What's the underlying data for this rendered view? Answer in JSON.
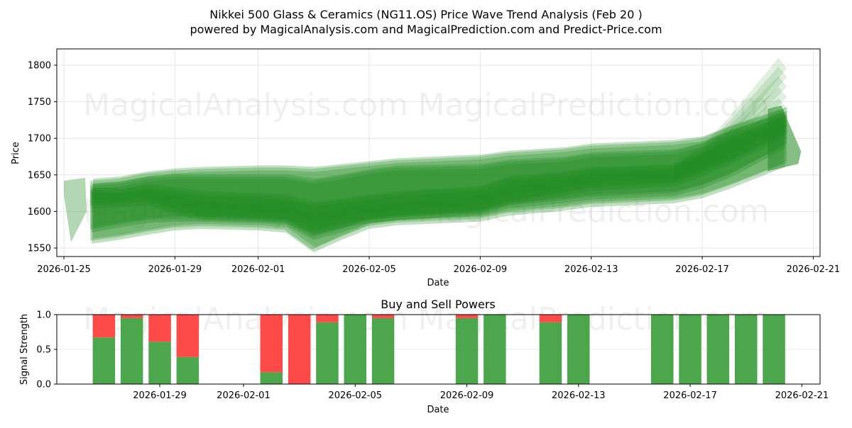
{
  "header": {
    "title_line1": "Nikkei 500 Glass & Ceramics (NG11.OS) Price Wave Trend Analysis (Feb 20 )",
    "title_line2": "powered by MagicalAnalysis.com and MagicalPrediction.com and Predict-Price.com"
  },
  "watermarks": [
    "MagicalAnalysis.com",
    "MagicalPrediction.com"
  ],
  "colors": {
    "wave": "#228B22",
    "buy": "#4CA64C",
    "sell": "#FF4A4A",
    "grid": "#e0e0e0"
  },
  "chart_data": [
    {
      "type": "area",
      "title": "Price Wave Trend",
      "xlabel": "Date",
      "ylabel": "Price",
      "ylim": [
        1537,
        1822
      ],
      "yticks": [
        1550,
        1600,
        1650,
        1700,
        1750,
        1800
      ],
      "xticks": [
        "2026-01-25",
        "2026-01-29",
        "2026-02-01",
        "2026-02-05",
        "2026-02-09",
        "2026-02-13",
        "2026-02-17",
        "2026-02-21"
      ],
      "grid": true,
      "center_line": {
        "x": [
          "2026-01-26",
          "2026-01-27",
          "2026-01-28",
          "2026-01-29",
          "2026-01-30",
          "2026-02-01",
          "2026-02-02",
          "2026-02-03",
          "2026-02-04",
          "2026-02-05",
          "2026-02-06",
          "2026-02-09",
          "2026-02-10",
          "2026-02-12",
          "2026-02-13",
          "2026-02-16",
          "2026-02-17",
          "2026-02-18",
          "2026-02-20"
        ],
        "y": [
          1622,
          1620,
          1625,
          1615,
          1608,
          1605,
          1603,
          1590,
          1598,
          1603,
          1607,
          1615,
          1628,
          1638,
          1645,
          1650,
          1665,
          1685,
          1720
        ]
      },
      "bands": [
        {
          "name": "outer-upper",
          "upper": [
            1642,
            1645,
            1652,
            1656,
            1658,
            1660,
            1660,
            1658,
            1662,
            1666,
            1670,
            1675,
            1680,
            1685,
            1690,
            1695,
            1700,
            1715,
            1740
          ],
          "lower": [
            1560,
            1565,
            1572,
            1578,
            1580,
            1578,
            1575,
            1548,
            1565,
            1580,
            1585,
            1590,
            1598,
            1605,
            1610,
            1615,
            1622,
            1635,
            1665
          ]
        },
        {
          "name": "mid",
          "upper": [
            1635,
            1638,
            1645,
            1648,
            1648,
            1648,
            1648,
            1642,
            1648,
            1655,
            1660,
            1662,
            1668,
            1672,
            1678,
            1682,
            1692,
            1708,
            1735
          ],
          "lower": [
            1575,
            1582,
            1588,
            1590,
            1590,
            1588,
            1585,
            1565,
            1575,
            1588,
            1592,
            1598,
            1608,
            1615,
            1620,
            1625,
            1635,
            1650,
            1690
          ]
        },
        {
          "name": "inner",
          "upper": [
            1630,
            1628,
            1635,
            1630,
            1625,
            1622,
            1620,
            1610,
            1615,
            1620,
            1625,
            1632,
            1645,
            1652,
            1658,
            1662,
            1678,
            1698,
            1730
          ],
          "lower": [
            1608,
            1610,
            1612,
            1600,
            1592,
            1590,
            1588,
            1572,
            1582,
            1588,
            1592,
            1600,
            1612,
            1625,
            1632,
            1638,
            1652,
            1668,
            1705
          ]
        }
      ],
      "spikes_end": [
        1810,
        1798,
        1785,
        1770,
        1755,
        1740
      ],
      "last_date": "2026-02-20"
    },
    {
      "type": "bar",
      "title": "Buy and Sell Powers",
      "xlabel": "Date",
      "ylabel": "Signal Strength",
      "ylim": [
        0,
        1
      ],
      "yticks": [
        "0.0",
        "0.5",
        "1.0"
      ],
      "xticks": [
        "2026-01-29",
        "2026-02-01",
        "2026-02-05",
        "2026-02-09",
        "2026-02-13",
        "2026-02-17",
        "2026-02-21"
      ],
      "categories": [
        "2026-01-27",
        "2026-01-28",
        "2026-01-29",
        "2026-01-30",
        "2026-02-02",
        "2026-02-03",
        "2026-02-04",
        "2026-02-05",
        "2026-02-06",
        "2026-02-09",
        "2026-02-10",
        "2026-02-12",
        "2026-02-13",
        "2026-02-16",
        "2026-02-17",
        "2026-02-18",
        "2026-02-19",
        "2026-02-20"
      ],
      "series": [
        {
          "name": "Buy",
          "values": [
            0.67,
            0.95,
            0.61,
            0.39,
            0.17,
            0.0,
            0.89,
            1.0,
            0.95,
            0.95,
            1.0,
            0.89,
            1.0,
            1.0,
            1.0,
            1.0,
            1.0,
            1.0
          ]
        },
        {
          "name": "Sell",
          "values": [
            0.33,
            0.05,
            0.39,
            0.61,
            0.83,
            1.0,
            0.11,
            0.0,
            0.05,
            0.05,
            0.0,
            0.11,
            0.0,
            0.0,
            0.0,
            0.0,
            0.0,
            0.0
          ]
        }
      ]
    }
  ]
}
